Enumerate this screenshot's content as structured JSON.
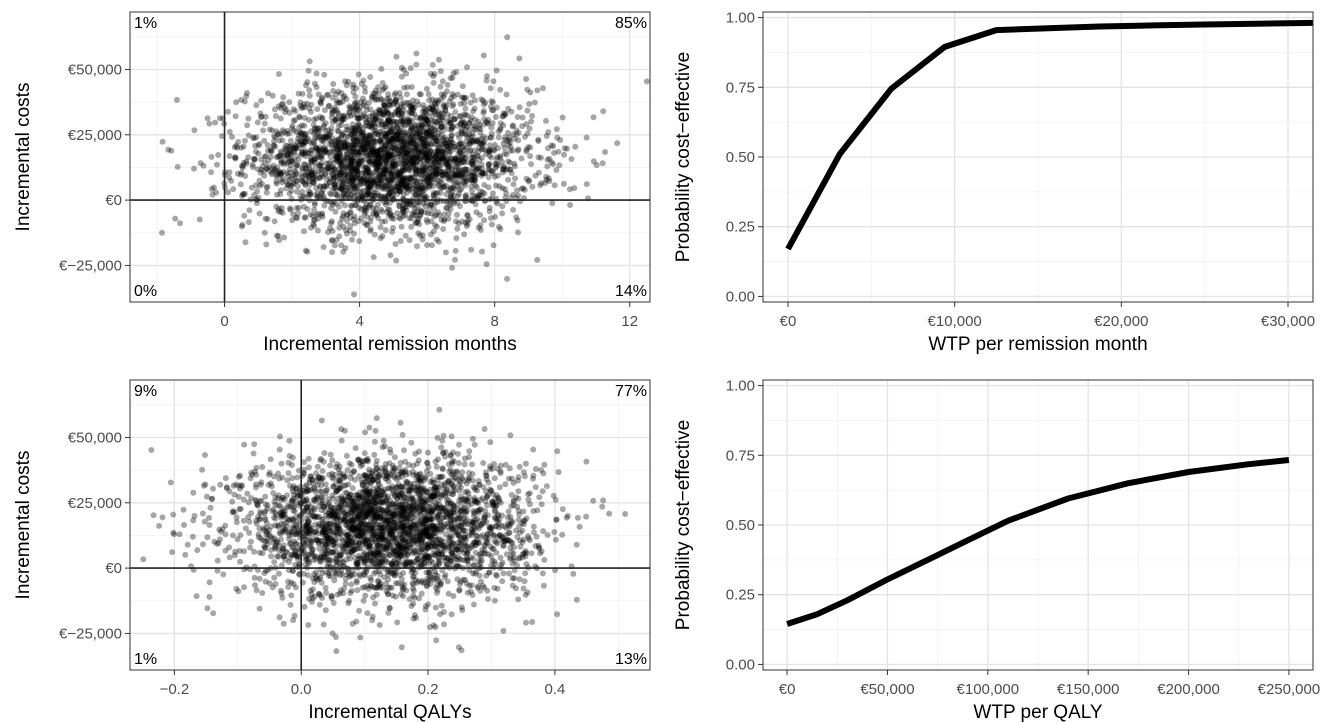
{
  "chart_data": [
    {
      "type": "scatter",
      "xlabel": "Incremental remission months",
      "ylabel": "Incremental costs",
      "xlim": [
        -2.8,
        12.6
      ],
      "ylim": [
        -39000,
        72000
      ],
      "x_ticks": [
        0,
        4,
        8,
        12
      ],
      "x_tick_labels": [
        "0",
        "4",
        "8",
        "12"
      ],
      "y_ticks": [
        -25000,
        0,
        25000,
        50000
      ],
      "y_tick_labels": [
        "€−25,000",
        "€0",
        "€25,000",
        "€50,000"
      ],
      "quadrant_labels": {
        "top_left": "1%",
        "top_right": "85%",
        "bottom_left": "0%",
        "bottom_right": "14%"
      },
      "cloud": {
        "n": 3000,
        "x_mean": 4.9,
        "x_sd": 2.1,
        "y_mean": 16000,
        "y_sd": 13500
      },
      "point_color": "#000000",
      "point_opacity": 0.35
    },
    {
      "type": "line",
      "xlabel": "WTP per remission month",
      "ylabel": "Probability cost−effective",
      "xlim": [
        -1500,
        31500
      ],
      "ylim": [
        -0.02,
        1.02
      ],
      "x_ticks": [
        0,
        10000,
        20000,
        30000
      ],
      "x_tick_labels": [
        "€0",
        "€10,000",
        "€20,000",
        "€30,000"
      ],
      "y_ticks": [
        0,
        0.25,
        0.5,
        0.75,
        1
      ],
      "y_tick_labels": [
        "0.00",
        "0.25",
        "0.50",
        "0.75",
        "1.00"
      ],
      "x": [
        0,
        3100,
        6200,
        9400,
        12500,
        15600,
        18700,
        21900,
        25000,
        28100,
        31500
      ],
      "y": [
        0.17,
        0.51,
        0.745,
        0.895,
        0.955,
        0.962,
        0.968,
        0.972,
        0.975,
        0.978,
        0.981
      ]
    },
    {
      "type": "scatter",
      "xlabel": "Incremental QALYs",
      "ylabel": "Incremental costs",
      "xlim": [
        -0.27,
        0.55
      ],
      "ylim": [
        -39000,
        72000
      ],
      "x_ticks": [
        -0.2,
        0,
        0.2,
        0.4
      ],
      "x_tick_labels": [
        "−0.2",
        "0.0",
        "0.2",
        "0.4"
      ],
      "y_ticks": [
        -25000,
        0,
        25000,
        50000
      ],
      "y_tick_labels": [
        "€−25,000",
        "€0",
        "€25,000",
        "€50,000"
      ],
      "quadrant_labels": {
        "top_left": "9%",
        "top_right": "77%",
        "bottom_left": "1%",
        "bottom_right": "13%"
      },
      "cloud": {
        "n": 3000,
        "x_mean": 0.135,
        "x_sd": 0.115,
        "y_mean": 16000,
        "y_sd": 13500
      },
      "point_color": "#000000",
      "point_opacity": 0.35
    },
    {
      "type": "line",
      "xlabel": "WTP per QALY",
      "ylabel": "Probability cost−effective",
      "xlim": [
        -12000,
        262000
      ],
      "ylim": [
        -0.02,
        1.02
      ],
      "x_ticks": [
        0,
        50000,
        100000,
        150000,
        200000,
        250000
      ],
      "x_tick_labels": [
        "€0",
        "€50,000",
        "€100,000",
        "€150,000",
        "€200,000",
        "€250,000"
      ],
      "y_ticks": [
        0,
        0.25,
        0.5,
        0.75,
        1
      ],
      "y_tick_labels": [
        "0.00",
        "0.25",
        "0.50",
        "0.75",
        "1.00"
      ],
      "x": [
        0,
        15000,
        30000,
        50000,
        70000,
        90000,
        110000,
        140000,
        170000,
        200000,
        230000,
        250000
      ],
      "y": [
        0.145,
        0.18,
        0.23,
        0.305,
        0.375,
        0.445,
        0.515,
        0.595,
        0.65,
        0.69,
        0.718,
        0.733
      ]
    }
  ]
}
